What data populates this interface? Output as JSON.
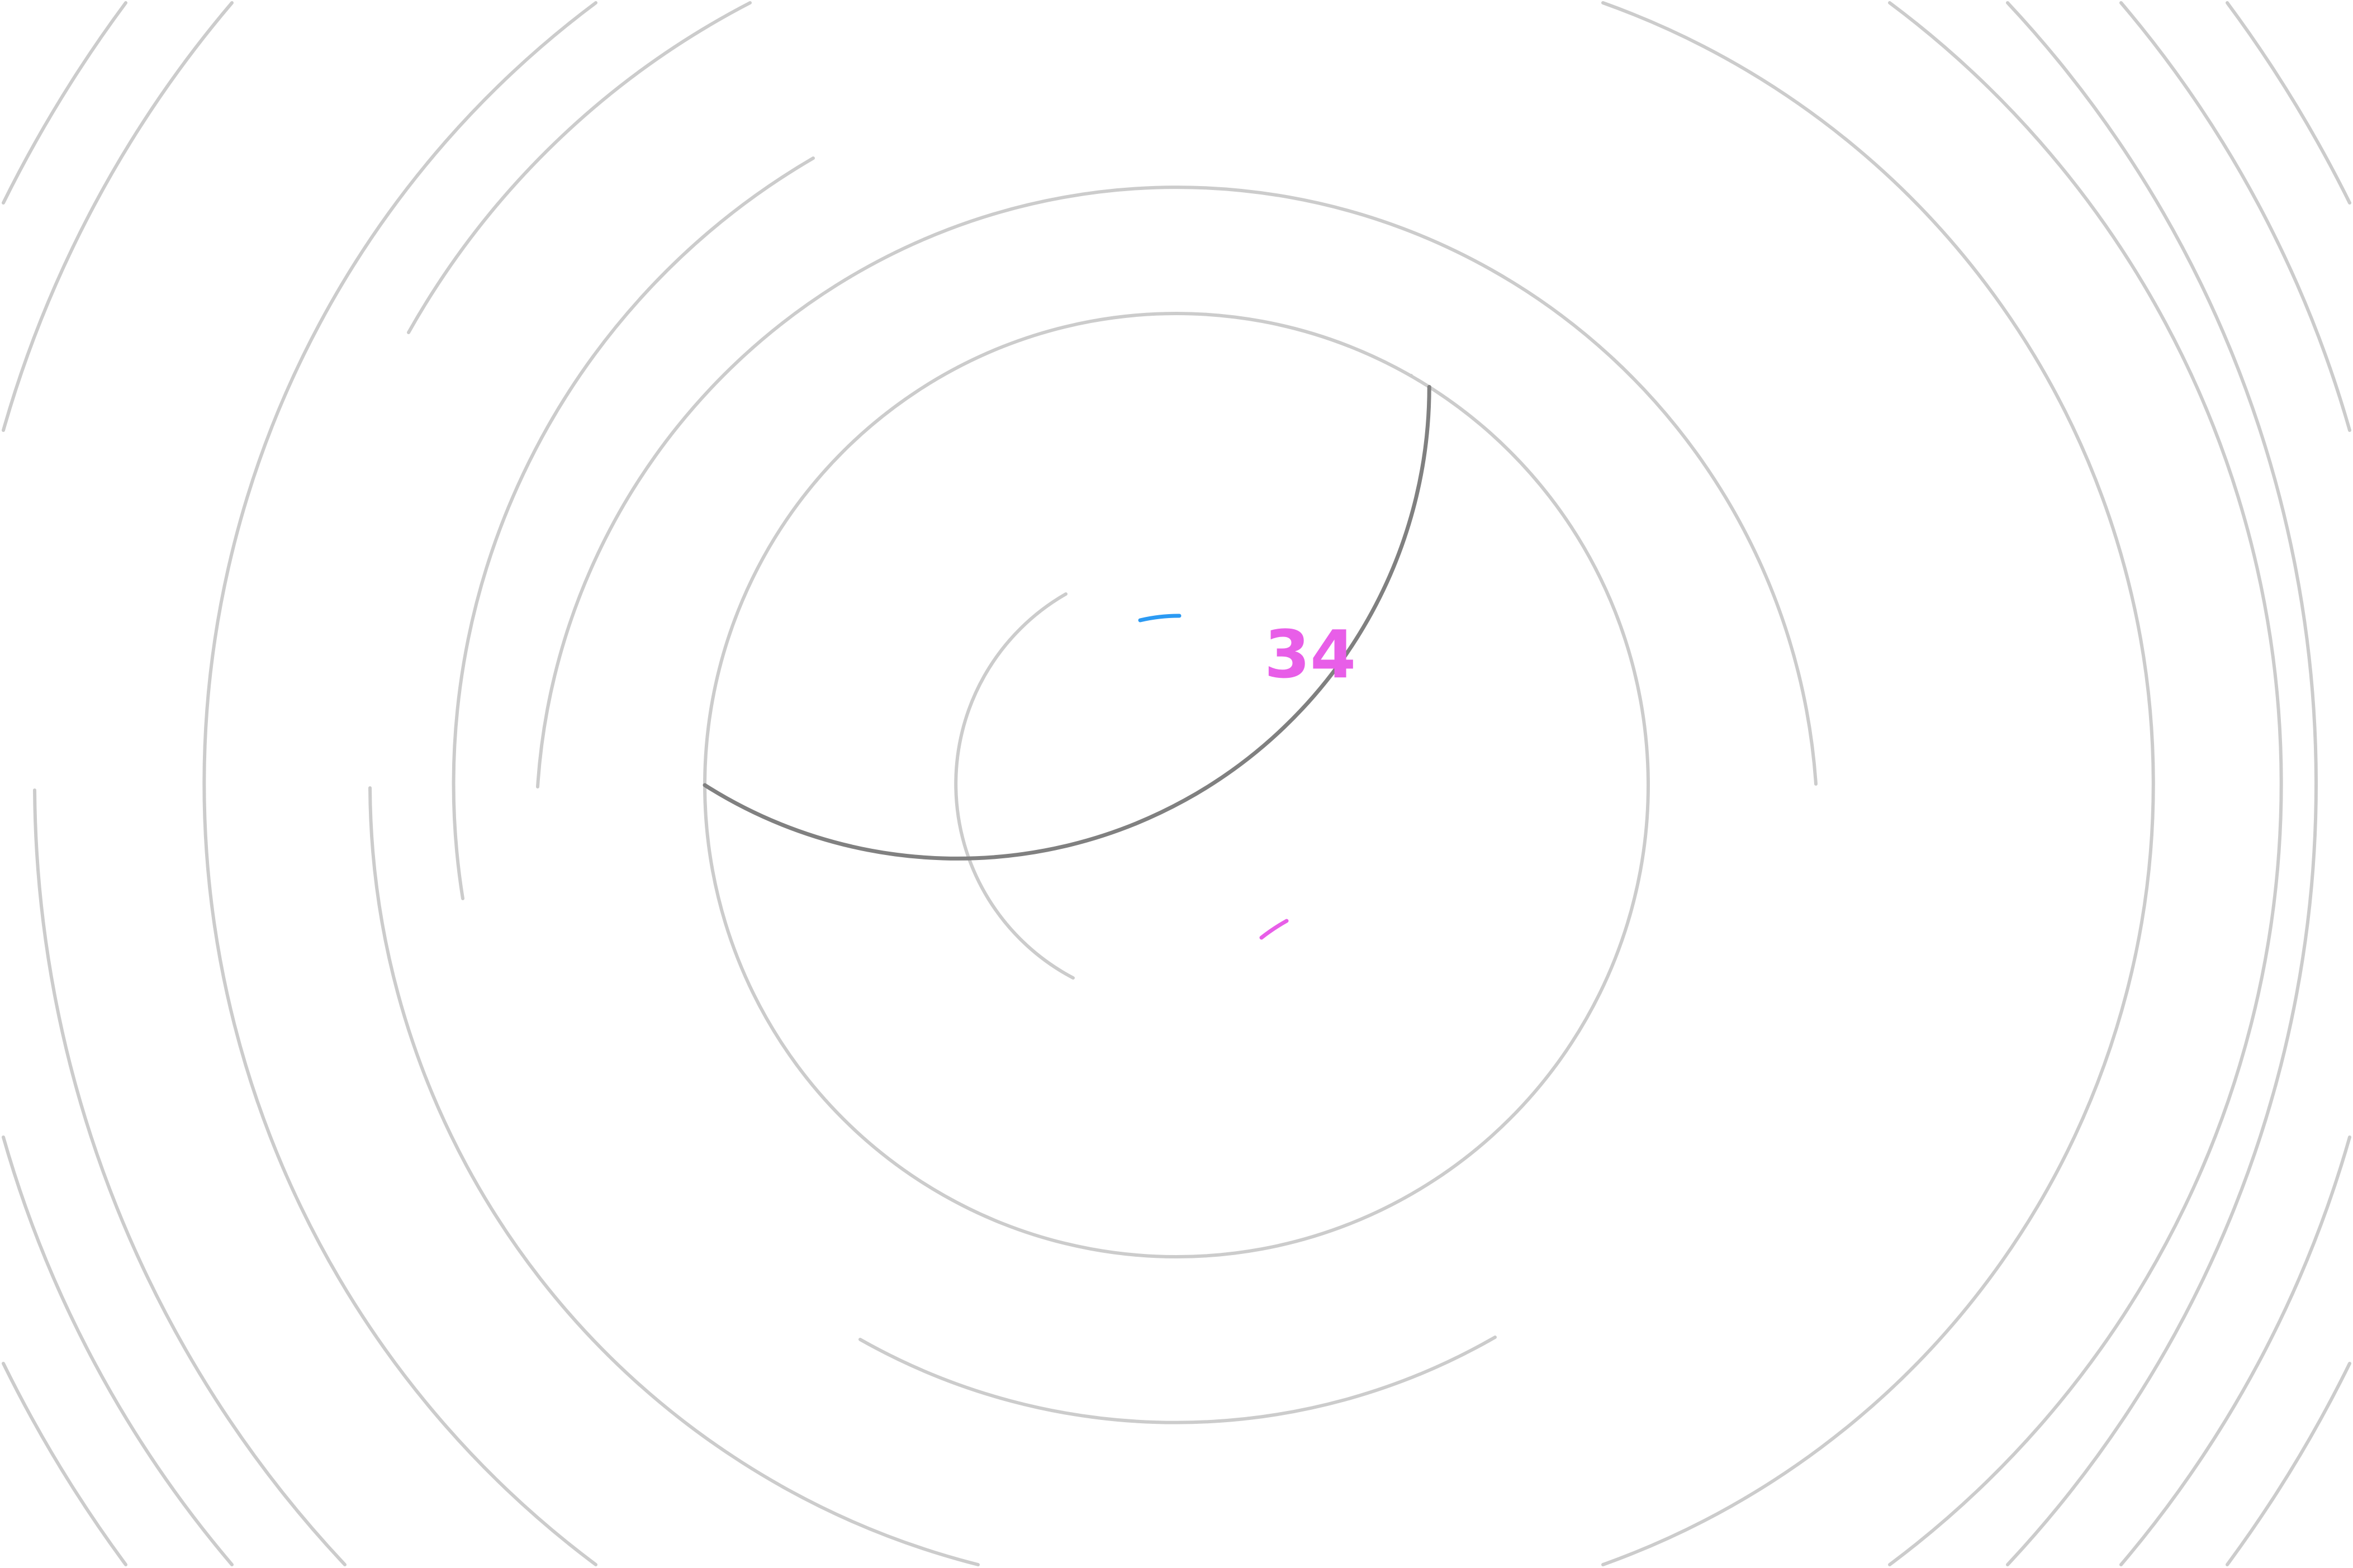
{
  "counter": {
    "value": "34",
    "color": "#e85ee8"
  },
  "progress": {
    "fraction": 0.34,
    "color": "#808080"
  },
  "palette": {
    "ring_color": "#cccccc",
    "accent_blue": "#2b9af3",
    "accent_magenta": "#e85ee8",
    "background": "#ffffff"
  }
}
